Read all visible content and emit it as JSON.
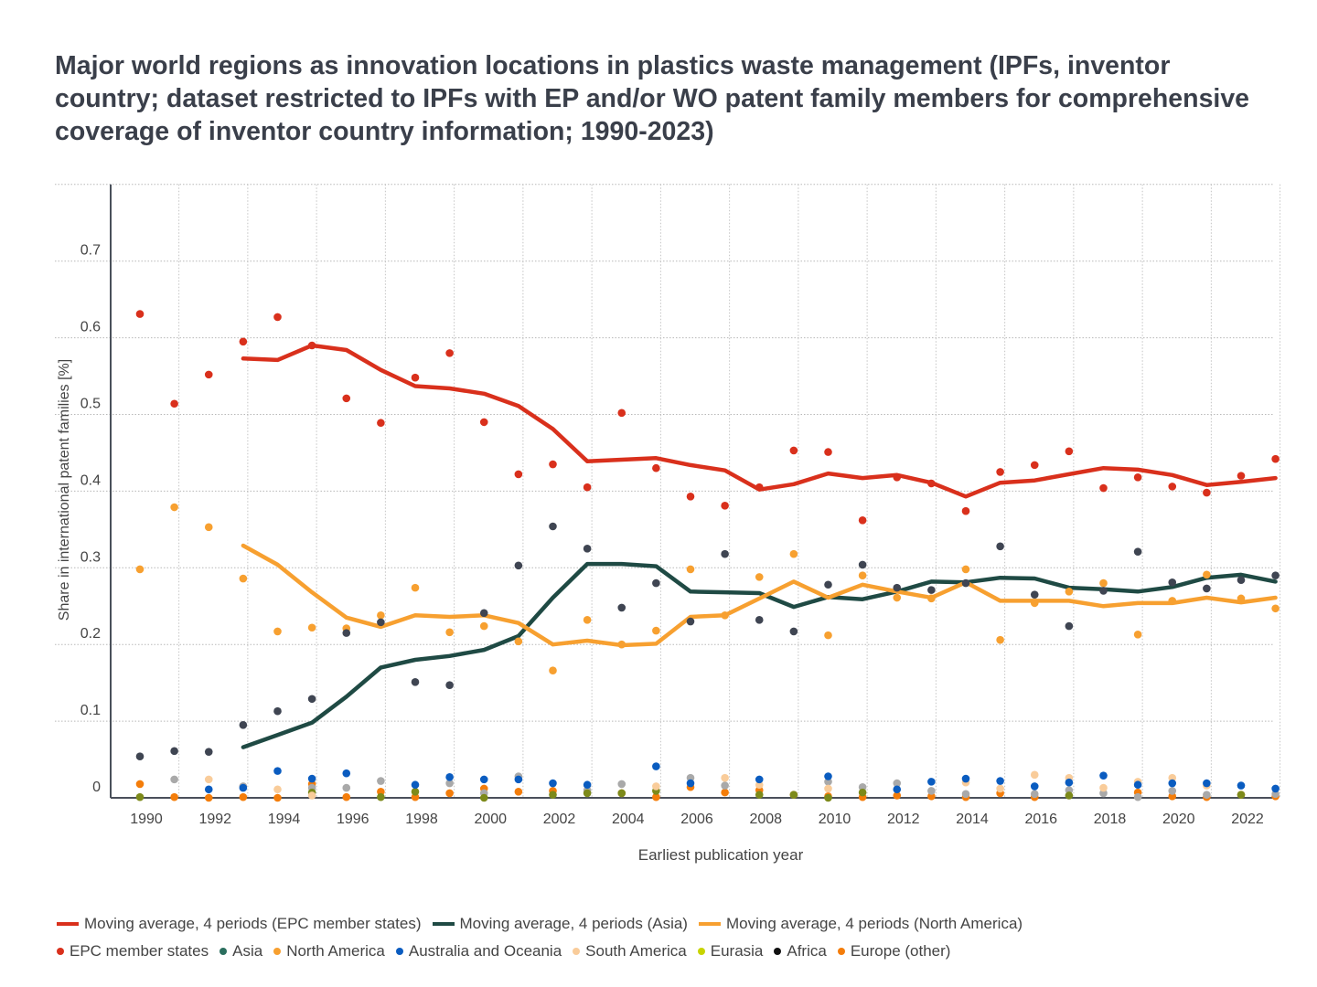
{
  "chart_data": {
    "type": "scatter",
    "title": "Major world regions as innovation locations in plastics waste management (IPFs, inventor country; dataset restricted to IPFs with EP and/or WO patent family members for comprehensive coverage of inventor country information; 1990-2023)",
    "xlabel": "Earliest publication year",
    "ylabel": "Share in international patent families [%]",
    "xlim": [
      1990,
      2023
    ],
    "ylim": [
      0,
      0.8
    ],
    "x_ticks": [
      "1990",
      "1992",
      "1994",
      "1996",
      "1998",
      "2000",
      "2002",
      "2004",
      "2006",
      "2008",
      "2010",
      "2012",
      "2014",
      "2016",
      "2018",
      "2020",
      "2022"
    ],
    "y_ticks": [
      "0",
      "0.1",
      "0.2",
      "0.3",
      "0.4",
      "0.5",
      "0.6",
      "0.7"
    ],
    "grid": true,
    "legend_placement": "bottom",
    "lines": [
      {
        "name": "Moving average, 4 periods (EPC member states)",
        "color": "#d9301c",
        "start_year": 1993,
        "values": [
          0.573,
          0.571,
          0.59,
          0.584,
          0.558,
          0.537,
          0.534,
          0.527,
          0.511,
          0.481,
          0.439,
          0.441,
          0.443,
          0.434,
          0.427,
          0.402,
          0.409,
          0.423,
          0.417,
          0.421,
          0.411,
          0.393,
          0.411,
          0.414,
          0.422,
          0.43,
          0.428,
          0.421,
          0.408,
          0.412,
          0.417
        ]
      },
      {
        "name": "Moving average, 4 periods (Asia)",
        "color": "#1f4a44",
        "start_year": 1993,
        "values": [
          0.066,
          0.082,
          0.098,
          0.132,
          0.17,
          0.18,
          0.185,
          0.193,
          0.211,
          0.261,
          0.305,
          0.305,
          0.302,
          0.269,
          0.268,
          0.267,
          0.249,
          0.262,
          0.259,
          0.269,
          0.282,
          0.281,
          0.287,
          0.286,
          0.274,
          0.272,
          0.269,
          0.275,
          0.287,
          0.291,
          0.282
        ]
      },
      {
        "name": "Moving average, 4 periods (North America)",
        "color": "#f7a030",
        "start_year": 1993,
        "values": [
          0.329,
          0.304,
          0.268,
          0.235,
          0.223,
          0.238,
          0.236,
          0.238,
          0.228,
          0.2,
          0.205,
          0.199,
          0.201,
          0.236,
          0.238,
          0.26,
          0.282,
          0.261,
          0.278,
          0.269,
          0.261,
          0.281,
          0.257,
          0.257,
          0.257,
          0.25,
          0.254,
          0.254,
          0.261,
          0.255,
          0.261
        ]
      }
    ],
    "series": [
      {
        "name": "EPC member states",
        "color": "#d9301c",
        "legend_color": "#d9301c",
        "start_year": 1990,
        "values": [
          0.631,
          0.514,
          0.552,
          0.595,
          0.627,
          0.59,
          0.521,
          0.489,
          0.548,
          0.58,
          0.49,
          0.422,
          0.435,
          0.405,
          0.502,
          0.43,
          0.393,
          0.381,
          0.405,
          0.453,
          0.451,
          0.362,
          0.418,
          0.41,
          0.374,
          0.425,
          0.434,
          0.452,
          0.404,
          0.418,
          0.406,
          0.398,
          0.42,
          0.442
        ]
      },
      {
        "name": "Asia",
        "color": "#3f4552",
        "legend_color": "#2a6e5e",
        "start_year": 1990,
        "values": [
          0.054,
          0.061,
          0.06,
          0.095,
          0.113,
          0.129,
          0.215,
          0.229,
          0.151,
          0.147,
          0.241,
          0.303,
          0.354,
          0.325,
          0.248,
          0.28,
          0.23,
          0.318,
          0.232,
          0.217,
          0.278,
          0.304,
          0.274,
          0.271,
          0.28,
          0.328,
          0.265,
          0.224,
          0.27,
          0.321,
          0.281,
          0.273,
          0.284,
          0.29
        ]
      },
      {
        "name": "North America",
        "color": "#f7a030",
        "legend_color": "#f7a030",
        "start_year": 1990,
        "values": [
          0.298,
          0.379,
          0.353,
          0.286,
          0.217,
          0.222,
          0.221,
          0.238,
          0.274,
          0.216,
          0.224,
          0.204,
          0.166,
          0.232,
          0.2,
          0.218,
          0.298,
          0.238,
          0.288,
          0.318,
          0.212,
          0.29,
          0.261,
          0.26,
          0.298,
          0.206,
          0.254,
          0.269,
          0.28,
          0.213,
          0.257,
          0.291,
          0.26,
          0.247
        ]
      },
      {
        "name": "Australia and Oceania",
        "color": "#0a5cc0",
        "legend_color": "#0a5cc0",
        "points": [
          [
            1992,
            0.011
          ],
          [
            1993,
            0.013
          ],
          [
            1994,
            0.035
          ],
          [
            1995,
            0.025
          ],
          [
            1996,
            0.032
          ],
          [
            1998,
            0.017
          ],
          [
            1999,
            0.027
          ],
          [
            2000,
            0.024
          ],
          [
            2001,
            0.024
          ],
          [
            2002,
            0.019
          ],
          [
            2003,
            0.017
          ],
          [
            2005,
            0.041
          ],
          [
            2006,
            0.019
          ],
          [
            2008,
            0.024
          ],
          [
            2010,
            0.028
          ],
          [
            2012,
            0.011
          ],
          [
            2013,
            0.021
          ],
          [
            2014,
            0.025
          ],
          [
            2015,
            0.022
          ],
          [
            2016,
            0.015
          ],
          [
            2017,
            0.02
          ],
          [
            2018,
            0.029
          ],
          [
            2019,
            0.017
          ],
          [
            2020,
            0.019
          ],
          [
            2021,
            0.019
          ],
          [
            2022,
            0.016
          ],
          [
            2023,
            0.012
          ]
        ]
      },
      {
        "name": "South America",
        "color": "#f9cc9a",
        "legend_color": "#f9cc9a",
        "points": [
          [
            1992,
            0.024
          ],
          [
            1994,
            0.011
          ],
          [
            1995,
            0.003
          ],
          [
            2005,
            0.015
          ],
          [
            2007,
            0.026
          ],
          [
            2008,
            0.017
          ],
          [
            2010,
            0.012
          ],
          [
            2014,
            0.02
          ],
          [
            2015,
            0.012
          ],
          [
            2016,
            0.03
          ],
          [
            2017,
            0.026
          ],
          [
            2018,
            0.013
          ],
          [
            2019,
            0.021
          ],
          [
            2020,
            0.026
          ],
          [
            2021,
            0.016
          ]
        ]
      },
      {
        "name": "Eurasia",
        "color": "#7d8a1a",
        "legend_color": "#c8d400",
        "points": [
          [
            1990,
            0.001
          ],
          [
            1995,
            0.007
          ],
          [
            1997,
            0.001
          ],
          [
            1998,
            0.008
          ],
          [
            2000,
            0.0
          ],
          [
            2002,
            0.004
          ],
          [
            2003,
            0.006
          ],
          [
            2004,
            0.006
          ],
          [
            2005,
            0.009
          ],
          [
            2008,
            0.004
          ],
          [
            2009,
            0.004
          ],
          [
            2010,
            0.0
          ],
          [
            2011,
            0.007
          ],
          [
            2017,
            0.003
          ],
          [
            2022,
            0.004
          ]
        ]
      },
      {
        "name": "Africa",
        "color": "#a9a9a9",
        "legend_color": "#111111",
        "points": [
          [
            1991,
            0.024
          ],
          [
            1993,
            0.015
          ],
          [
            1995,
            0.013
          ],
          [
            1996,
            0.013
          ],
          [
            1997,
            0.022
          ],
          [
            1999,
            0.019
          ],
          [
            2000,
            0.006
          ],
          [
            2001,
            0.028
          ],
          [
            2003,
            0.01
          ],
          [
            2004,
            0.018
          ],
          [
            2006,
            0.026
          ],
          [
            2007,
            0.016
          ],
          [
            2010,
            0.021
          ],
          [
            2011,
            0.014
          ],
          [
            2012,
            0.019
          ],
          [
            2013,
            0.009
          ],
          [
            2014,
            0.005
          ],
          [
            2016,
            0.005
          ],
          [
            2017,
            0.01
          ],
          [
            2018,
            0.006
          ],
          [
            2019,
            0.001
          ],
          [
            2020,
            0.009
          ],
          [
            2021,
            0.004
          ],
          [
            2023,
            0.005
          ]
        ]
      },
      {
        "name": "Europe (other)",
        "color": "#f47d0a",
        "legend_color": "#f47d0a",
        "points": [
          [
            1990,
            0.018
          ],
          [
            1991,
            0.001
          ],
          [
            1992,
            0.0
          ],
          [
            1993,
            0.001
          ],
          [
            1994,
            0.0
          ],
          [
            1995,
            0.018
          ],
          [
            1996,
            0.001
          ],
          [
            1997,
            0.008
          ],
          [
            1998,
            0.001
          ],
          [
            1999,
            0.006
          ],
          [
            2000,
            0.012
          ],
          [
            2001,
            0.008
          ],
          [
            2002,
            0.009
          ],
          [
            2004,
            0.006
          ],
          [
            2005,
            0.001
          ],
          [
            2006,
            0.014
          ],
          [
            2007,
            0.007
          ],
          [
            2008,
            0.01
          ],
          [
            2009,
            0.004
          ],
          [
            2010,
            0.002
          ],
          [
            2011,
            0.001
          ],
          [
            2012,
            0.003
          ],
          [
            2013,
            0.002
          ],
          [
            2014,
            0.001
          ],
          [
            2015,
            0.006
          ],
          [
            2016,
            0.001
          ],
          [
            2019,
            0.007
          ],
          [
            2020,
            0.002
          ],
          [
            2021,
            0.001
          ],
          [
            2022,
            0.004
          ],
          [
            2023,
            0.002
          ]
        ]
      }
    ]
  }
}
